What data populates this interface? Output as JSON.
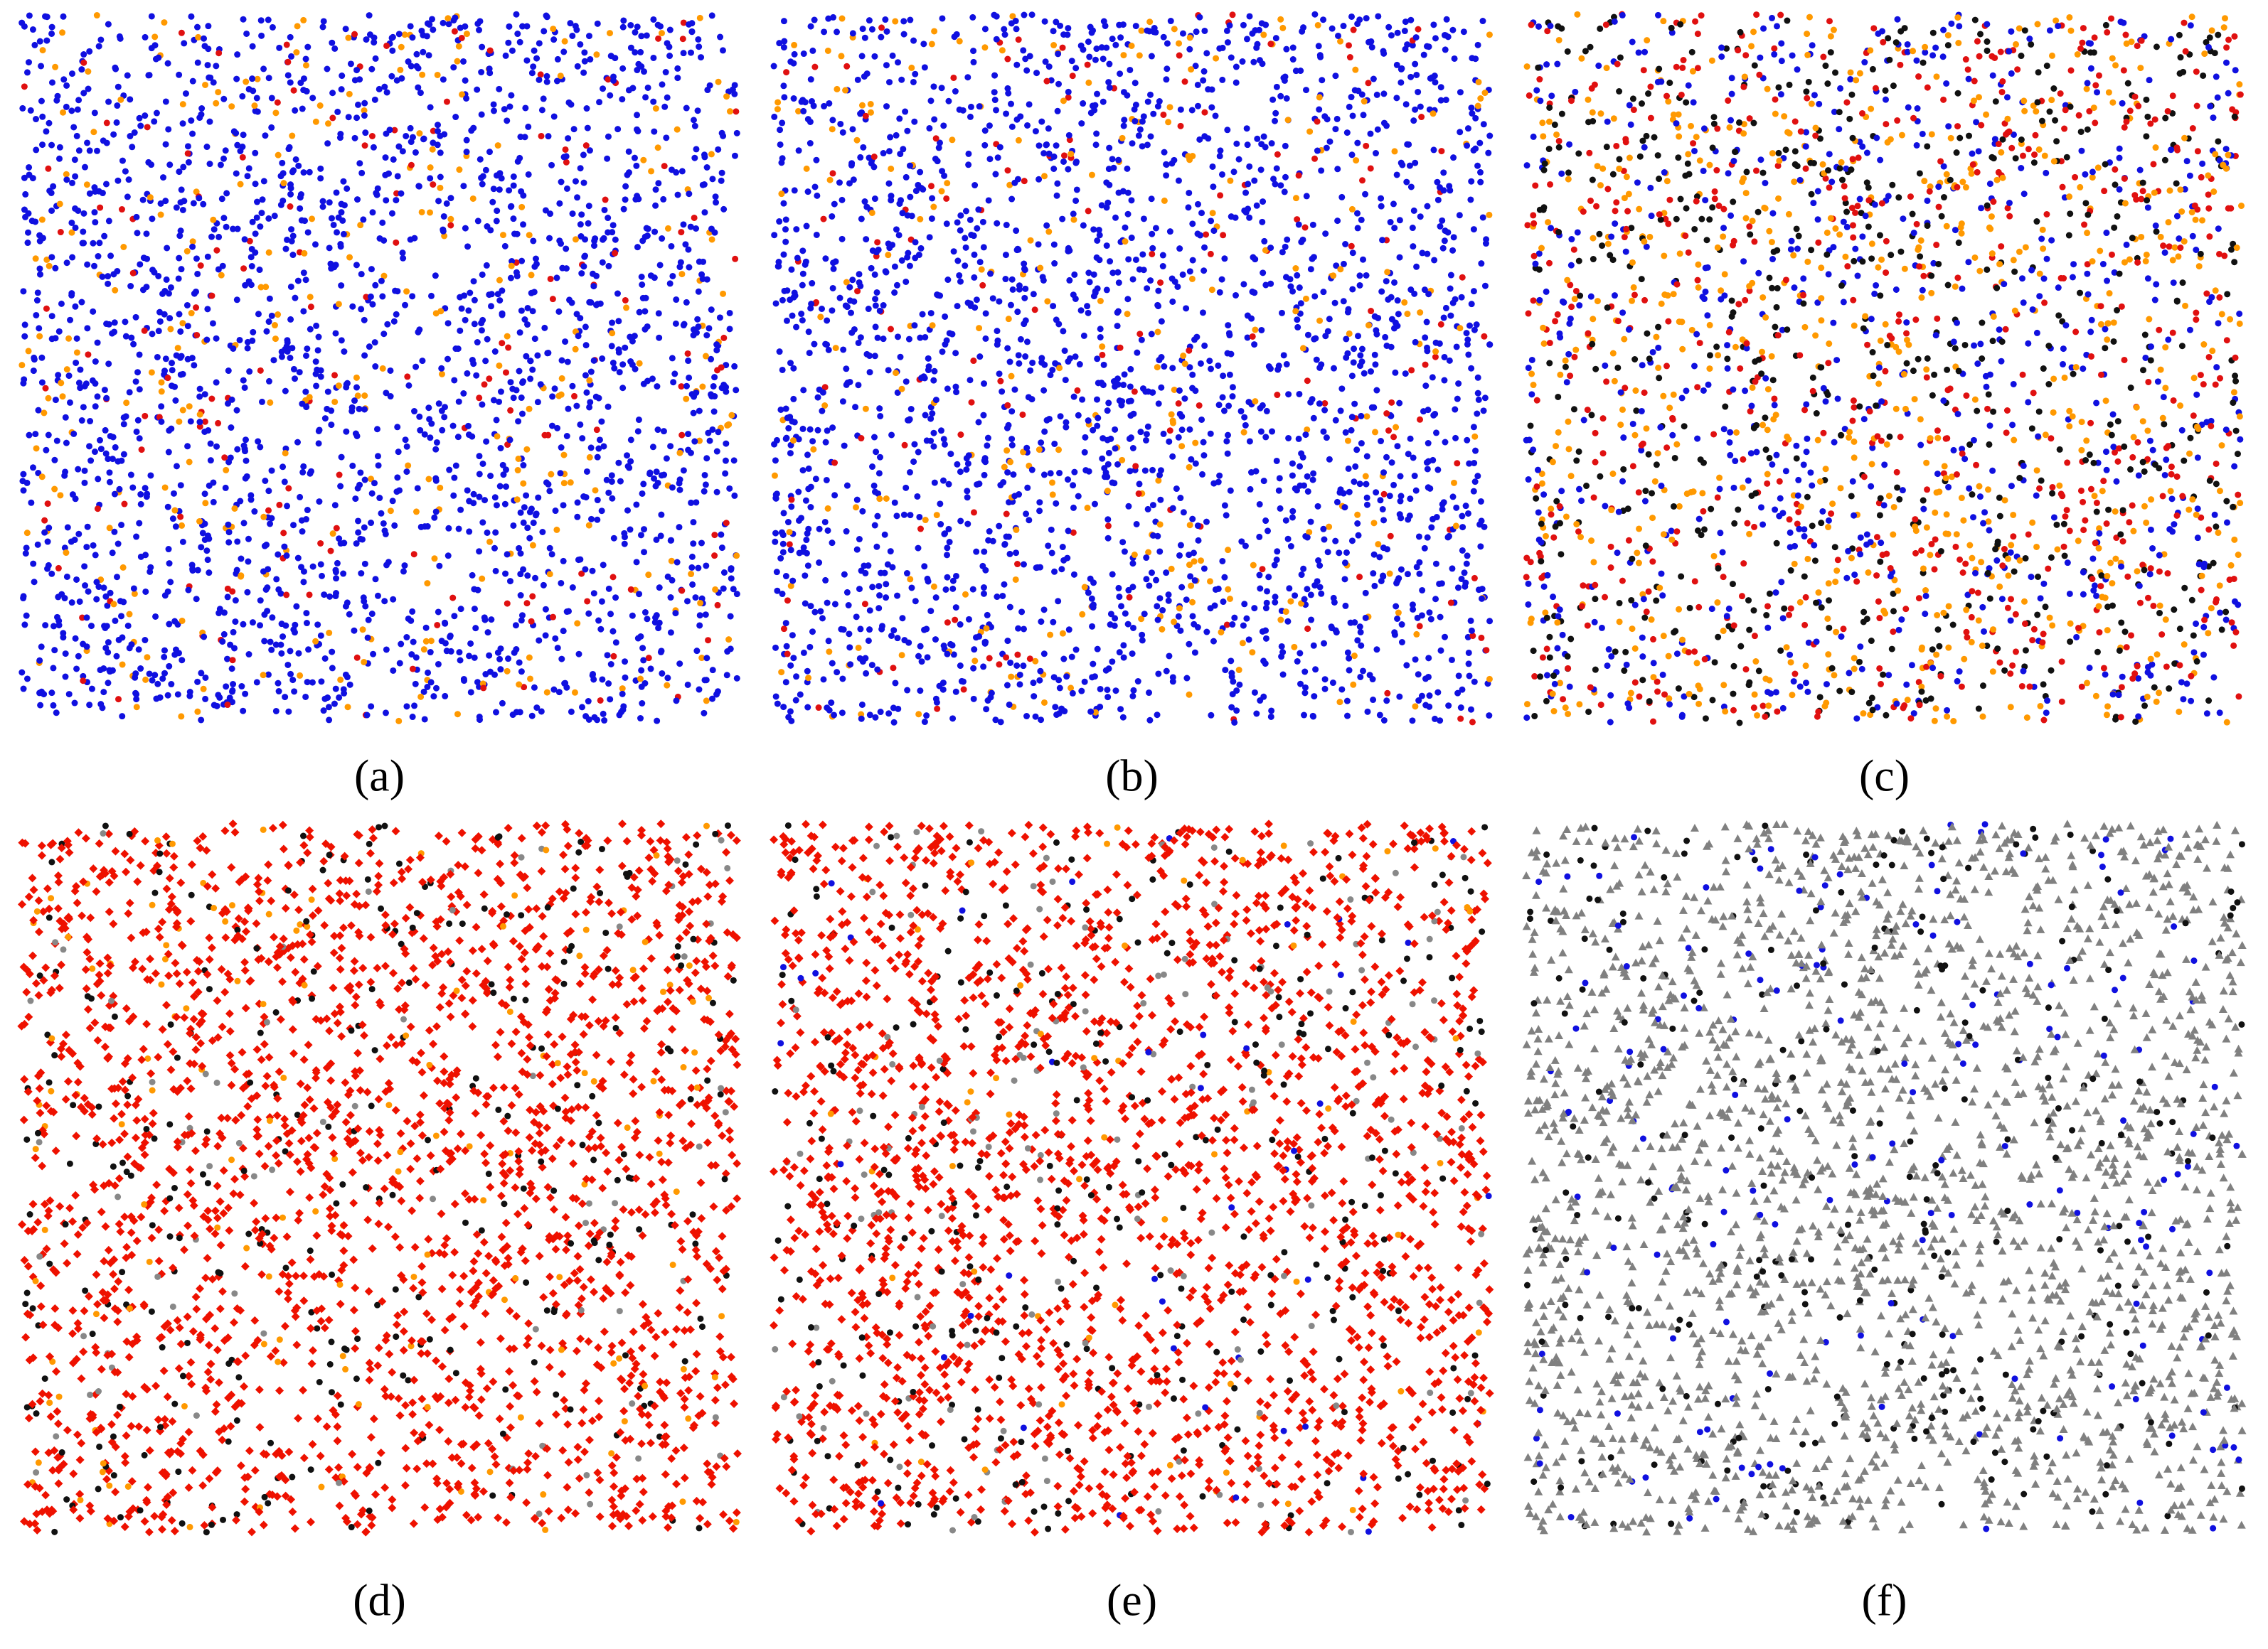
{
  "panels": [
    {
      "label": "(a)",
      "colors": [
        "#1010e0",
        "#ff9900",
        "#e01010"
      ],
      "dominant": true,
      "marker": "circle"
    },
    {
      "label": "(b)",
      "colors": [
        "#1010e0",
        "#ff9900",
        "#e01010"
      ],
      "dominant": true,
      "marker": "circle"
    },
    {
      "label": "(c)",
      "colors": [
        "#1010e0",
        "#ff9900",
        "#e01010",
        "#111111"
      ],
      "dominant": false,
      "marker": "circle"
    },
    {
      "label": "(d)",
      "colors": [
        "#ee1100",
        "#111111",
        "#ff9900",
        "#888888"
      ],
      "dominant": true,
      "marker": "diamond"
    },
    {
      "label": "(e)",
      "colors": [
        "#ee1100",
        "#111111",
        "#888888",
        "#ff9900",
        "#1010e0"
      ],
      "dominant": true,
      "marker": "diamond"
    },
    {
      "label": "(f)",
      "colors": [
        "#808080",
        "#111111",
        "#1010e0"
      ],
      "dominant": true,
      "marker": "triangle"
    }
  ]
}
